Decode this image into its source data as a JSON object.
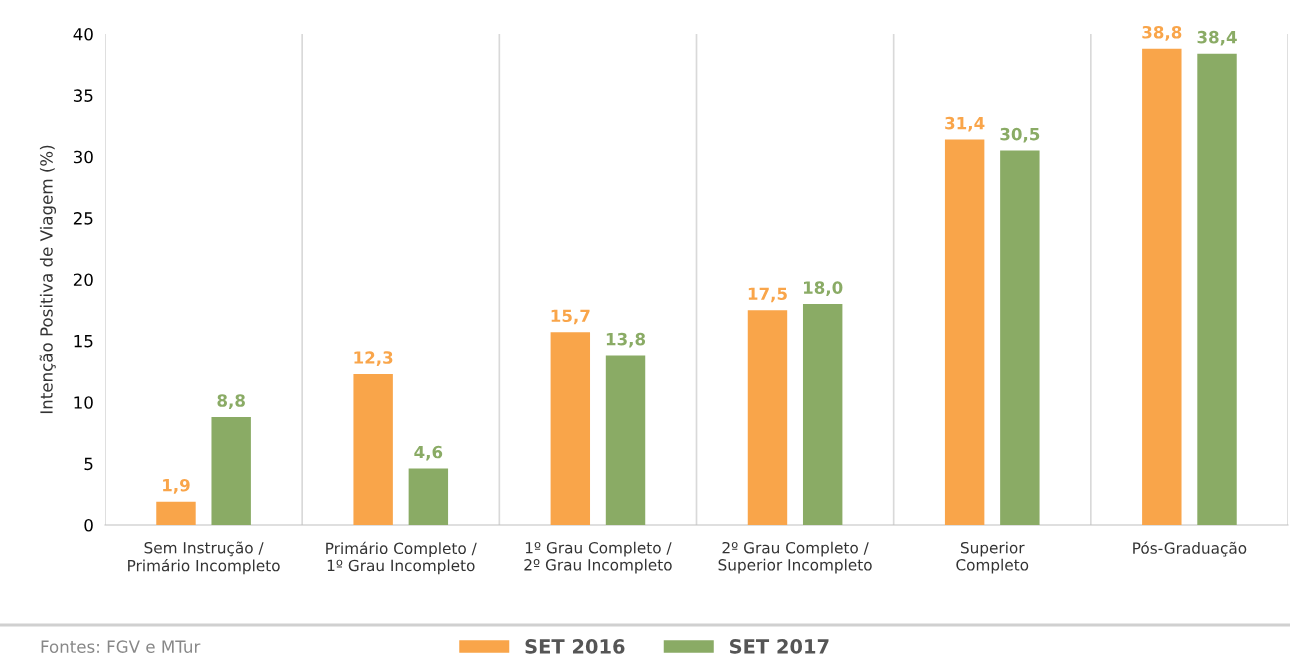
{
  "chart_data": {
    "type": "bar",
    "ylabel": "Intenção Positiva de Viagem (%)",
    "categories": [
      "Sem Instrução /\nPrimário Incompleto",
      "Primário Completo /\n1º Grau Incompleto",
      "1º Grau Completo /\n2º Grau Incompleto",
      "2º Grau Completo /\nSuperior Incompleto",
      "Superior\nCompleto",
      "Pós-Graduação"
    ],
    "series": [
      {
        "name": "SET 2016",
        "color": "#f9a54a",
        "values": [
          1.9,
          12.3,
          15.7,
          17.5,
          31.4,
          38.8
        ],
        "value_labels": [
          "1,9",
          "12,3",
          "15,7",
          "17,5",
          "31,4",
          "38,8"
        ]
      },
      {
        "name": "SET 2017",
        "color": "#8aab65",
        "values": [
          8.8,
          4.6,
          13.8,
          18.0,
          30.5,
          38.4
        ],
        "value_labels": [
          "8,8",
          "4,6",
          "13,8",
          "18,0",
          "30,5",
          "38,4"
        ]
      }
    ],
    "ylim": [
      0,
      40
    ],
    "yticks": [
      0,
      5,
      10,
      15,
      20,
      25,
      30,
      35,
      40
    ],
    "grid": "x",
    "legend": "bottom",
    "annotations": [
      "Fontes: FGV e MTur"
    ]
  }
}
